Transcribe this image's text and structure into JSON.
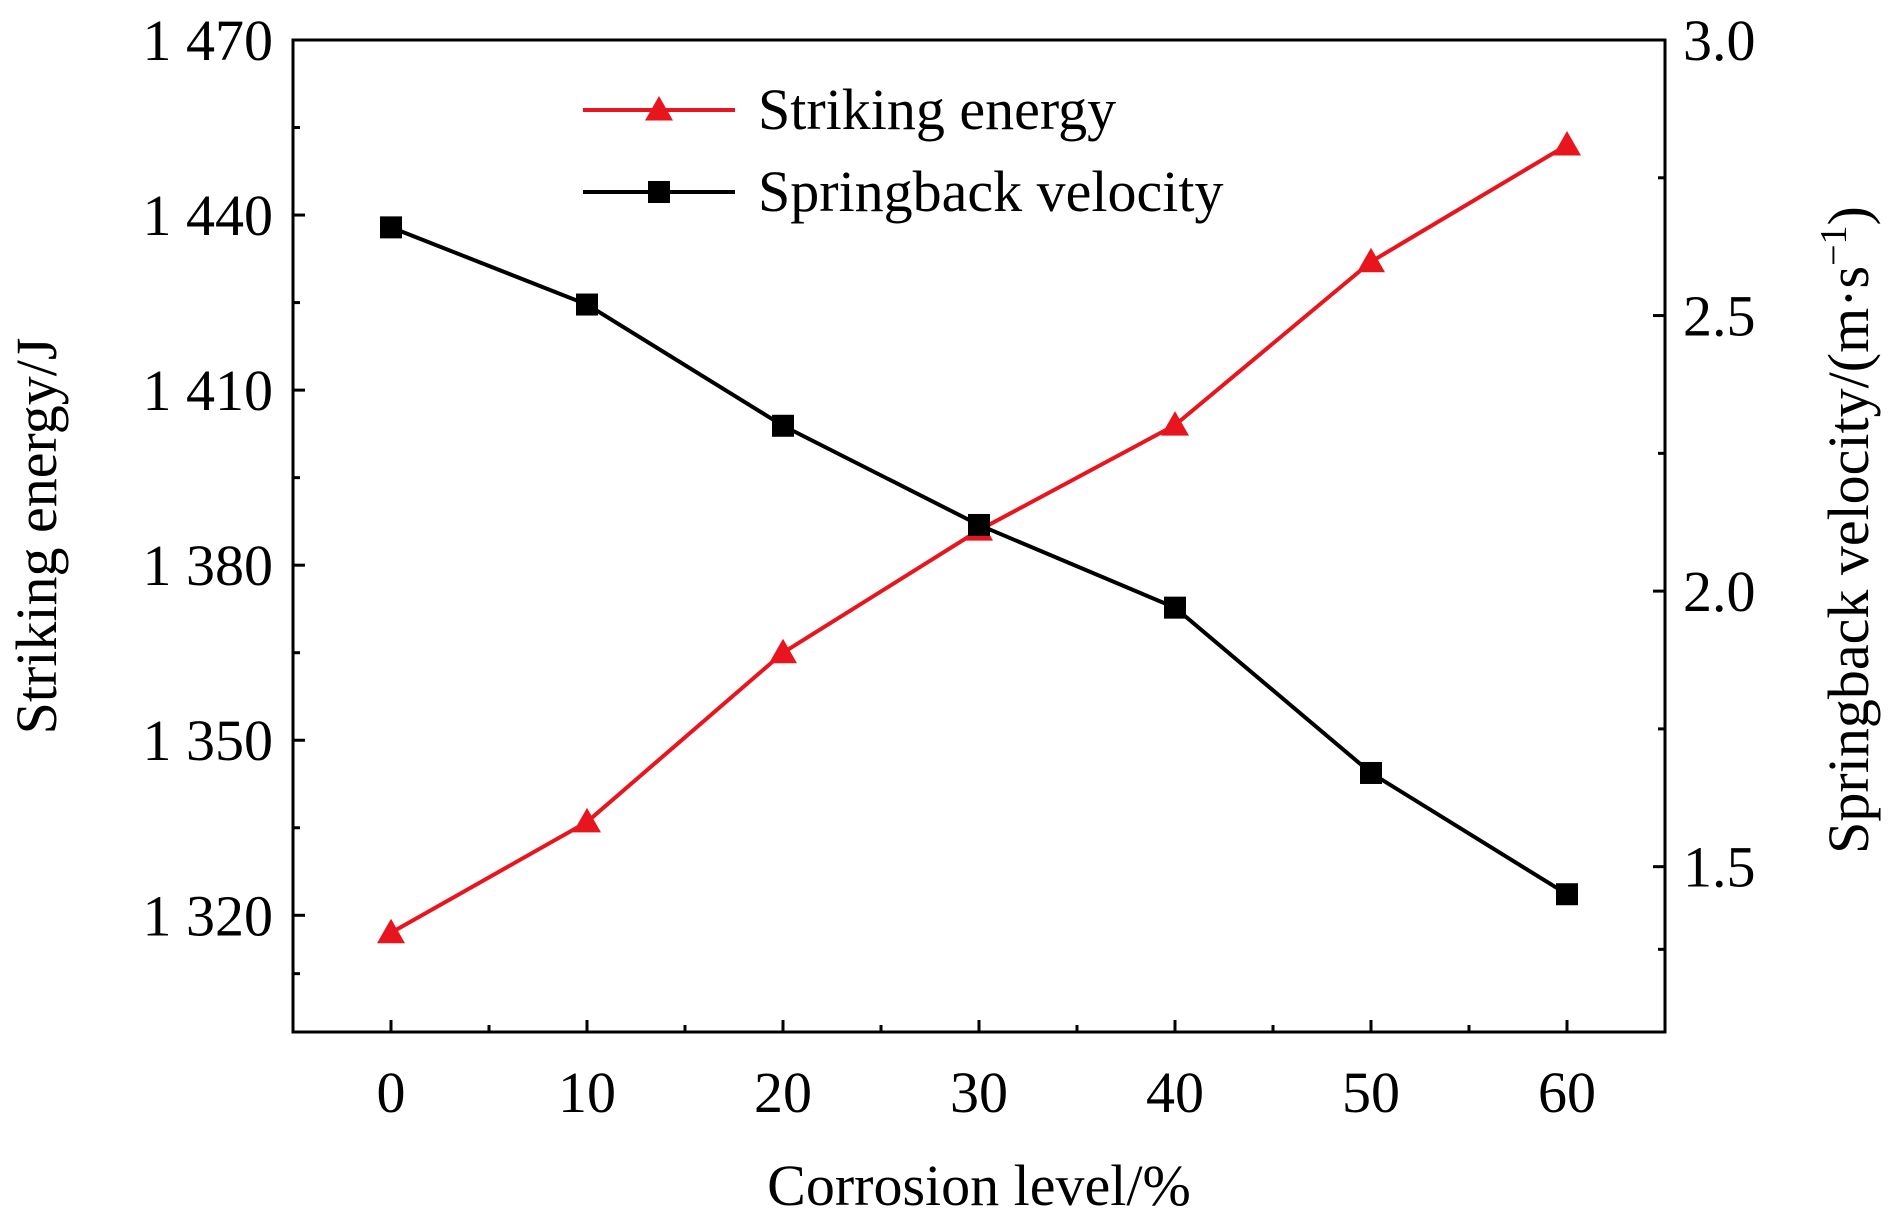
{
  "chart_data": {
    "type": "line",
    "x": [
      0,
      10,
      20,
      30,
      40,
      50,
      60
    ],
    "xlabel": "Corrosion level/%",
    "xlim": [
      -5,
      65
    ],
    "xticks": [
      0,
      10,
      20,
      30,
      40,
      50,
      60
    ],
    "ylabel_left": "Striking energy/J",
    "ylim_left": [
      1300,
      1470
    ],
    "yticks_left": [
      1320,
      1350,
      1380,
      1410,
      1440,
      1470
    ],
    "yticks_left_labels": [
      "1 320",
      "1 350",
      "1 380",
      "1 410",
      "1 440",
      "1 470"
    ],
    "ylabel_right_base": "Springback velocity/(m·s",
    "ylabel_right_sup": "−1",
    "ylabel_right_close": ")",
    "ylim_right": [
      1.2,
      3.0
    ],
    "yticks_right": [
      1.5,
      2.0,
      2.5,
      3.0
    ],
    "yticks_right_labels": [
      "1.5",
      "2.0",
      "2.5",
      "3.0"
    ],
    "legend_position": "top-center",
    "series": [
      {
        "name": "Striking energy",
        "axis": "left",
        "color": "#e8141e",
        "marker": "triangle",
        "values": [
          1317,
          1336,
          1365,
          1386,
          1404,
          1432,
          1452
        ]
      },
      {
        "name": "Springback velocity",
        "axis": "right",
        "color": "#000000",
        "marker": "square",
        "values": [
          2.66,
          2.52,
          2.3,
          2.12,
          1.97,
          1.67,
          1.45
        ]
      }
    ]
  }
}
